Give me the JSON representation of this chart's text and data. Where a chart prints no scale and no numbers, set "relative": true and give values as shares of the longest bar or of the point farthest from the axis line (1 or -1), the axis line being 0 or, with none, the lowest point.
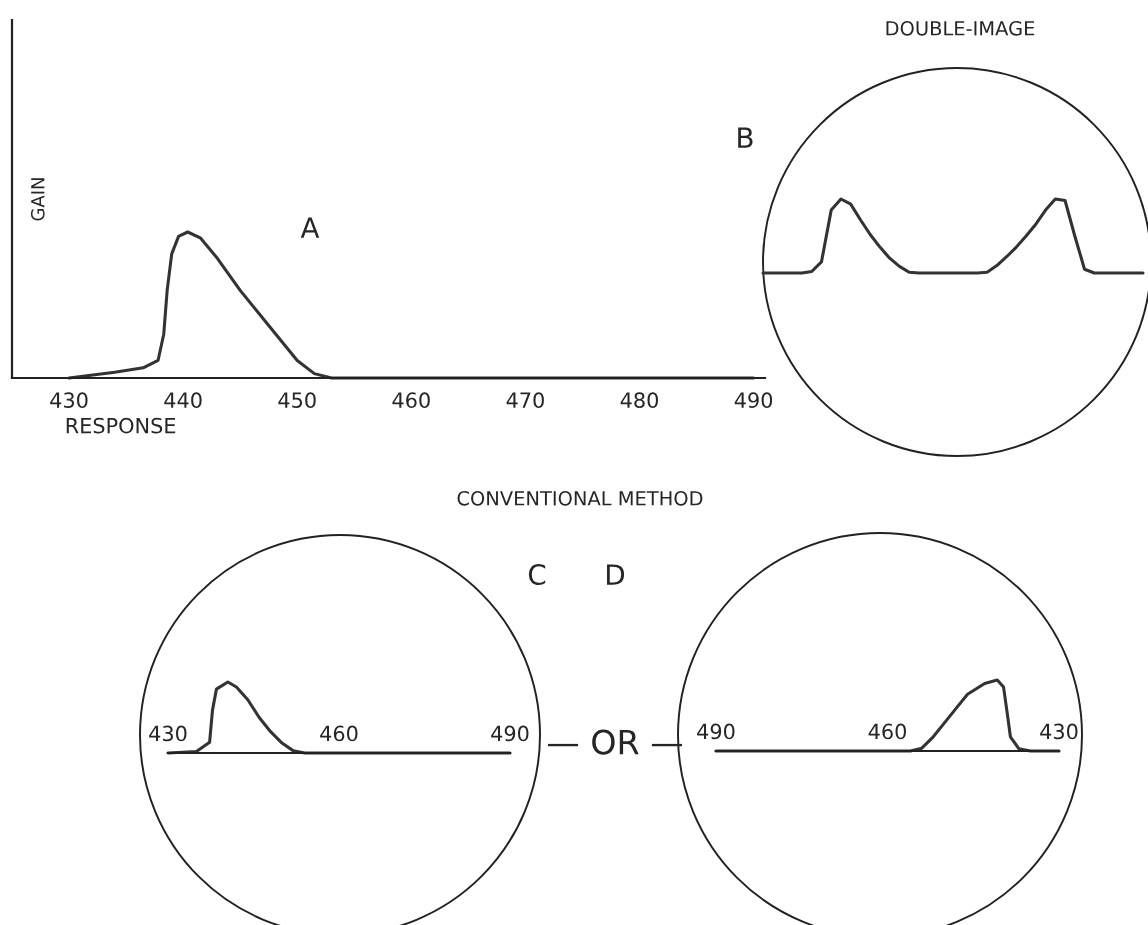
{
  "chart_data": [
    {
      "type": "line",
      "relative": true,
      "xlabel": "RESPONSE",
      "ylabel": "GAIN",
      "annotations": [
        "A"
      ],
      "xlim": [
        425,
        491
      ],
      "xticks": [
        430,
        440,
        450,
        460,
        470,
        480,
        490
      ],
      "grid": false,
      "legend": false,
      "tick_labels": "x",
      "series": [
        {
          "color": "#333333",
          "x": [
            430,
            434,
            436.5,
            437.8,
            438.3,
            438.6,
            439,
            439.6,
            440.4,
            441.5,
            443,
            445,
            447.5,
            450,
            451.5,
            453,
            490
          ],
          "values": [
            0,
            0.04,
            0.07,
            0.12,
            0.3,
            0.6,
            0.85,
            0.97,
            1,
            0.96,
            0.82,
            0.6,
            0.36,
            0.12,
            0.03,
            0,
            0
          ]
        }
      ]
    },
    {
      "type": "line",
      "relative": true,
      "title": "DOUBLE-IMAGE",
      "annotations": [
        "B"
      ],
      "grid": false,
      "legend": false,
      "tick_labels": false,
      "categories": [
        null,
        null,
        null,
        null,
        null,
        null,
        null,
        null,
        null,
        null,
        null,
        null,
        null,
        null,
        null,
        null,
        null,
        null,
        null,
        null,
        null,
        null,
        null,
        null,
        null,
        null,
        null,
        null,
        null,
        null,
        null,
        null,
        null,
        null,
        null,
        null,
        null,
        null,
        null,
        null
      ],
      "series": [
        {
          "color": "#333333",
          "values": [
            0,
            0,
            0,
            0,
            0,
            0.02,
            0.15,
            0.85,
            1,
            0.93,
            0.72,
            0.52,
            0.35,
            0.2,
            0.09,
            0.01,
            0,
            0,
            0,
            0,
            0,
            0,
            0,
            0.01,
            0.1,
            0.22,
            0.35,
            0.5,
            0.66,
            0.85,
            1,
            0.98,
            0.5,
            0.05,
            0,
            0,
            0,
            0,
            0,
            0
          ]
        }
      ]
    },
    {
      "type": "line",
      "relative": true,
      "title": "CONVENTIONAL METHOD",
      "annotations": [
        "C"
      ],
      "xlim": [
        430,
        490
      ],
      "xticks": [
        430,
        460,
        490
      ],
      "grid": false,
      "legend": false,
      "tick_labels": "x",
      "series": [
        {
          "color": "#333333",
          "x": [
            430,
            435,
            437.3,
            437.8,
            438.5,
            440.5,
            442,
            444,
            446,
            448,
            450,
            452,
            454,
            460,
            490
          ],
          "values": [
            0,
            0.02,
            0.15,
            0.6,
            0.9,
            1,
            0.93,
            0.75,
            0.5,
            0.3,
            0.14,
            0.03,
            0,
            0,
            0
          ]
        }
      ]
    },
    {
      "type": "line",
      "relative": true,
      "annotations": [
        "D",
        "— OR —"
      ],
      "xlim": [
        490,
        430
      ],
      "xticks": [
        490,
        460,
        430
      ],
      "grid": false,
      "legend": false,
      "tick_labels": "x",
      "series": [
        {
          "color": "#333333",
          "x": [
            490,
            460,
            456,
            454,
            452,
            450,
            448,
            446,
            443,
            440.8,
            439.7,
            439,
            438.5,
            437,
            435,
            430
          ],
          "values": [
            0,
            0,
            0,
            0.04,
            0.2,
            0.4,
            0.6,
            0.8,
            0.95,
            1,
            0.9,
            0.5,
            0.2,
            0.03,
            0,
            0
          ]
        }
      ]
    }
  ]
}
